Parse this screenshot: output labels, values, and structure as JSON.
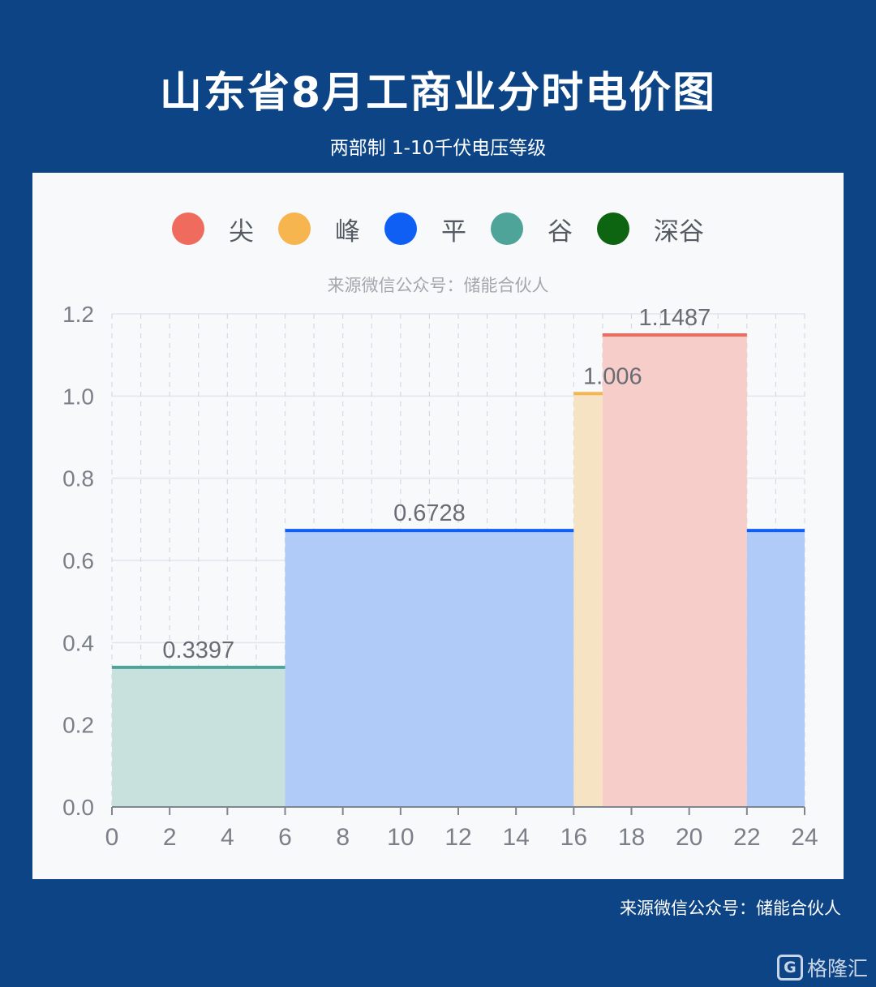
{
  "header": {
    "title": "山东省8月工商业分时电价图",
    "subtitle": "两部制 1-10千伏电压等级"
  },
  "legend": [
    {
      "label": "尖",
      "color": "#ee6b5d"
    },
    {
      "label": "峰",
      "color": "#f6b54e"
    },
    {
      "label": "平",
      "color": "#0f5ff5"
    },
    {
      "label": "谷",
      "color": "#4fa49a"
    },
    {
      "label": "深谷",
      "color": "#0d6512"
    }
  ],
  "inner_source": "来源微信公众号：储能合伙人",
  "footer": {
    "source": "来源微信公众号：储能合伙人",
    "watermark_logo": "G",
    "watermark": "格隆汇"
  },
  "chart_data": {
    "type": "area",
    "title": "",
    "xlabel": "",
    "ylabel": "",
    "xlim": [
      0,
      24
    ],
    "ylim": [
      0,
      1.2
    ],
    "x_ticks": [
      "0",
      "2",
      "4",
      "6",
      "8",
      "10",
      "12",
      "14",
      "16",
      "18",
      "20",
      "22",
      "24"
    ],
    "y_ticks": [
      "0.0",
      "0.2",
      "0.4",
      "0.6",
      "0.8",
      "1.0",
      "1.2"
    ],
    "grid": true,
    "legend_position": "top-center",
    "segments": [
      {
        "category": "谷",
        "x_start": 0,
        "x_end": 6,
        "value": 0.3397,
        "label": "0.3397",
        "line_color": "#4fa49a",
        "fill_color": "#c8e1dd"
      },
      {
        "category": "平",
        "x_start": 6,
        "x_end": 16,
        "value": 0.6728,
        "label": "0.6728",
        "line_color": "#0f5ff5",
        "fill_color": "#b1cbf9"
      },
      {
        "category": "峰",
        "x_start": 16,
        "x_end": 17,
        "value": 1.006,
        "label": "1.006",
        "line_color": "#f6b54e",
        "fill_color": "#f6e3c3"
      },
      {
        "category": "尖",
        "x_start": 17,
        "x_end": 22,
        "value": 1.1487,
        "label": "1.1487",
        "line_color": "#ee6b5d",
        "fill_color": "#f7cdca"
      },
      {
        "category": "平",
        "x_start": 22,
        "x_end": 24,
        "value": 0.6728,
        "label": "",
        "line_color": "#0f5ff5",
        "fill_color": "#b1cbf9"
      }
    ]
  }
}
